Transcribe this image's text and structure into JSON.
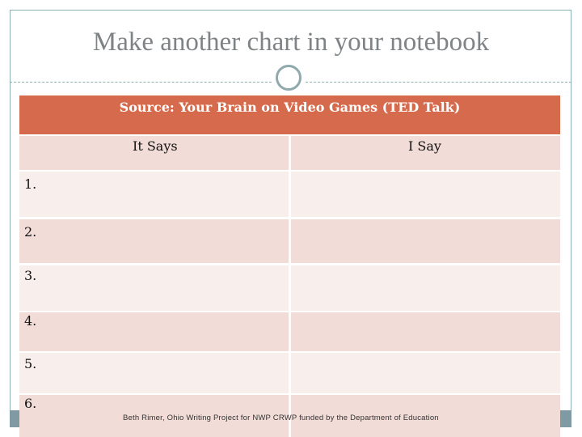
{
  "slide": {
    "title": "Make another chart in your notebook"
  },
  "table": {
    "header": "Source: Your Brain on Video Games (TED Talk)",
    "columns": [
      "It Says",
      "I Say"
    ],
    "rows": [
      {
        "number": "1."
      },
      {
        "number": "2."
      },
      {
        "number": "3."
      },
      {
        "number": "4."
      },
      {
        "number": "5."
      },
      {
        "number": "6."
      }
    ]
  },
  "footer": {
    "credit": "Beth Rimer, Ohio Writing Project for NWP CRWP funded by the Department of Education"
  },
  "colors": {
    "header": "#d56a4c",
    "row_shaded": "#f2dcd7",
    "row_light": "#f8eeec",
    "frame": "#8fb0b3"
  }
}
